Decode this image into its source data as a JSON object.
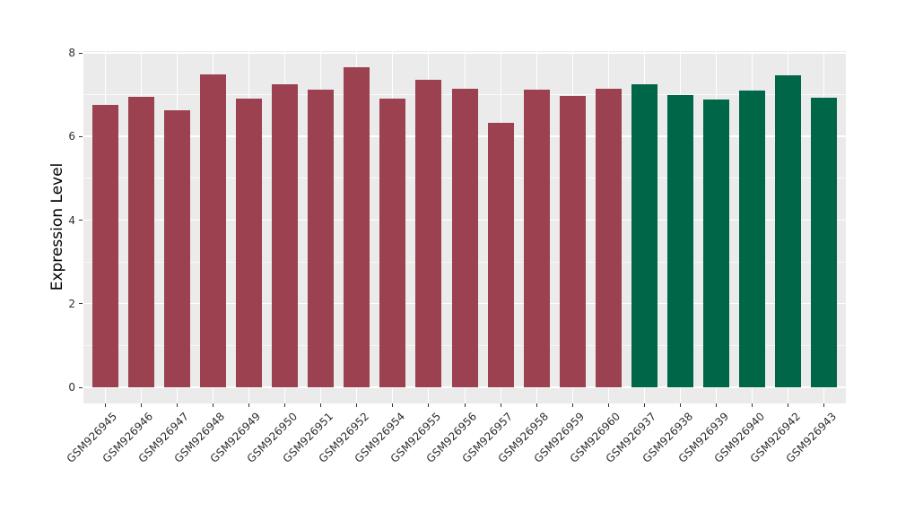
{
  "chart_data": {
    "type": "bar",
    "title": "",
    "xlabel": "",
    "ylabel": "Expression Level",
    "ylim": [
      0,
      8
    ],
    "yticks_major": [
      0,
      2,
      4,
      6,
      8
    ],
    "yticks_minor": [
      1,
      3,
      5,
      7
    ],
    "grid": true,
    "legend": "none",
    "panel_bg": "#EBEBEB",
    "grid_color": "#FFFFFF",
    "tick_color": "#333333",
    "group_colors": {
      "maroon": "#9B4150",
      "green": "#006648"
    },
    "categories": [
      "GSM926945",
      "GSM926946",
      "GSM926947",
      "GSM926948",
      "GSM926949",
      "GSM926950",
      "GSM926951",
      "GSM926952",
      "GSM926954",
      "GSM926955",
      "GSM926956",
      "GSM926957",
      "GSM926958",
      "GSM926959",
      "GSM926960",
      "GSM926937",
      "GSM926938",
      "GSM926939",
      "GSM926940",
      "GSM926942",
      "GSM926943"
    ],
    "bars": [
      {
        "label": "GSM926945",
        "value": 6.76,
        "group": "maroon"
      },
      {
        "label": "GSM926946",
        "value": 6.95,
        "group": "maroon"
      },
      {
        "label": "GSM926947",
        "value": 6.62,
        "group": "maroon"
      },
      {
        "label": "GSM926948",
        "value": 7.49,
        "group": "maroon"
      },
      {
        "label": "GSM926949",
        "value": 6.9,
        "group": "maroon"
      },
      {
        "label": "GSM926950",
        "value": 7.26,
        "group": "maroon"
      },
      {
        "label": "GSM926951",
        "value": 7.13,
        "group": "maroon"
      },
      {
        "label": "GSM926952",
        "value": 7.66,
        "group": "maroon"
      },
      {
        "label": "GSM926954",
        "value": 6.91,
        "group": "maroon"
      },
      {
        "label": "GSM926955",
        "value": 7.36,
        "group": "maroon"
      },
      {
        "label": "GSM926956",
        "value": 7.14,
        "group": "maroon"
      },
      {
        "label": "GSM926957",
        "value": 6.33,
        "group": "maroon"
      },
      {
        "label": "GSM926958",
        "value": 7.11,
        "group": "maroon"
      },
      {
        "label": "GSM926959",
        "value": 6.96,
        "group": "maroon"
      },
      {
        "label": "GSM926960",
        "value": 7.15,
        "group": "maroon"
      },
      {
        "label": "GSM926937",
        "value": 7.26,
        "group": "green"
      },
      {
        "label": "GSM926938",
        "value": 7.0,
        "group": "green"
      },
      {
        "label": "GSM926939",
        "value": 6.88,
        "group": "green"
      },
      {
        "label": "GSM926940",
        "value": 7.09,
        "group": "green"
      },
      {
        "label": "GSM926942",
        "value": 7.47,
        "group": "green"
      },
      {
        "label": "GSM926943",
        "value": 6.93,
        "group": "green"
      }
    ]
  }
}
